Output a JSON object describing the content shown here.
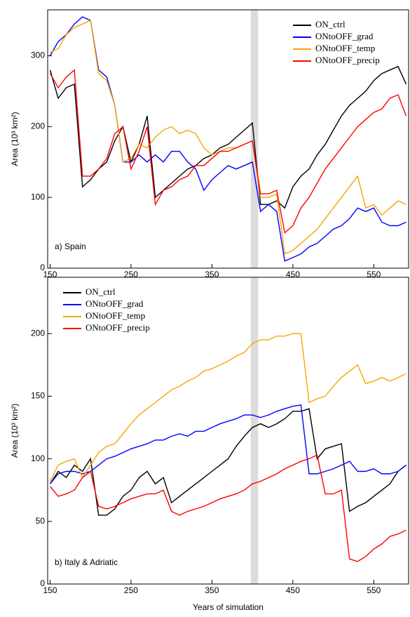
{
  "chart_data": [
    {
      "type": "line",
      "annotation": "a) Spain",
      "ylabel": "Area (10³ km²)",
      "x": [
        150,
        160,
        170,
        180,
        190,
        200,
        210,
        220,
        230,
        240,
        250,
        260,
        270,
        280,
        290,
        300,
        310,
        320,
        330,
        340,
        350,
        360,
        370,
        380,
        390,
        400,
        410,
        420,
        430,
        440,
        450,
        460,
        470,
        480,
        490,
        500,
        510,
        520,
        530,
        540,
        550,
        560,
        570,
        580,
        590
      ],
      "series": [
        {
          "name": "ON_ctrl",
          "color": "#000000",
          "values": [
            280,
            240,
            255,
            260,
            115,
            125,
            140,
            150,
            180,
            200,
            150,
            175,
            215,
            100,
            110,
            120,
            130,
            140,
            145,
            155,
            160,
            170,
            175,
            185,
            195,
            205,
            90,
            90,
            95,
            85,
            115,
            130,
            140,
            160,
            175,
            195,
            215,
            230,
            240,
            250,
            265,
            275,
            280,
            285,
            260
          ]
        },
        {
          "name": "ONtoOFF_grad",
          "color": "#0000ff",
          "values": [
            300,
            320,
            330,
            345,
            355,
            350,
            280,
            270,
            230,
            150,
            150,
            160,
            150,
            160,
            150,
            165,
            165,
            150,
            140,
            110,
            125,
            135,
            145,
            140,
            145,
            150,
            80,
            90,
            80,
            10,
            15,
            20,
            30,
            35,
            45,
            55,
            60,
            70,
            85,
            80,
            85,
            65,
            60,
            60,
            65
          ]
        },
        {
          "name": "ONtoOFF_temp",
          "color": "#f5a700",
          "values": [
            305,
            310,
            330,
            340,
            345,
            350,
            275,
            265,
            230,
            150,
            155,
            175,
            170,
            185,
            195,
            200,
            190,
            195,
            190,
            170,
            160,
            165,
            170,
            170,
            175,
            180,
            100,
            100,
            105,
            20,
            25,
            35,
            45,
            55,
            70,
            85,
            100,
            115,
            130,
            85,
            90,
            75,
            85,
            95,
            90
          ]
        },
        {
          "name": "ONtoOFF_precip",
          "color": "#ff0000",
          "values": [
            275,
            255,
            270,
            280,
            130,
            130,
            140,
            155,
            190,
            200,
            140,
            165,
            200,
            90,
            110,
            115,
            125,
            130,
            145,
            145,
            155,
            165,
            165,
            170,
            175,
            180,
            105,
            105,
            110,
            50,
            60,
            85,
            100,
            120,
            140,
            155,
            170,
            185,
            200,
            210,
            220,
            225,
            240,
            245,
            215
          ]
        }
      ],
      "xlim": [
        147,
        593
      ],
      "xticks": [
        150,
        250,
        350,
        450,
        550
      ],
      "ylim": [
        0,
        365
      ],
      "yticks": [
        0,
        100,
        200,
        300
      ],
      "shade": [
        398,
        407
      ],
      "legend": "upper right"
    },
    {
      "type": "line",
      "annotation": "b) Italy & Adriatic",
      "ylabel": "Area (10³ km²)",
      "xlabel": "Years of simulation",
      "x": [
        150,
        160,
        170,
        180,
        190,
        200,
        210,
        220,
        230,
        240,
        250,
        260,
        270,
        280,
        290,
        300,
        310,
        320,
        330,
        340,
        350,
        360,
        370,
        380,
        390,
        400,
        410,
        420,
        430,
        440,
        450,
        460,
        470,
        480,
        490,
        500,
        510,
        520,
        530,
        540,
        550,
        560,
        570,
        580,
        590
      ],
      "series": [
        {
          "name": "ON_ctrl",
          "color": "#000000",
          "values": [
            80,
            90,
            85,
            95,
            90,
            100,
            55,
            55,
            60,
            70,
            75,
            85,
            90,
            80,
            85,
            65,
            70,
            75,
            80,
            85,
            90,
            95,
            100,
            110,
            118,
            125,
            128,
            125,
            128,
            132,
            138,
            138,
            140,
            100,
            108,
            110,
            112,
            58,
            62,
            65,
            70,
            75,
            80,
            90,
            95
          ]
        },
        {
          "name": "ONtoOFF_grad",
          "color": "#0000ff",
          "values": [
            80,
            88,
            90,
            90,
            88,
            90,
            95,
            100,
            102,
            105,
            108,
            110,
            112,
            115,
            115,
            118,
            120,
            118,
            122,
            122,
            125,
            128,
            130,
            132,
            135,
            135,
            133,
            135,
            138,
            140,
            142,
            143,
            88,
            88,
            90,
            92,
            95,
            98,
            90,
            90,
            92,
            88,
            88,
            90,
            95
          ]
        },
        {
          "name": "ONtoOFF_temp",
          "color": "#f5a700",
          "values": [
            82,
            95,
            98,
            100,
            85,
            95,
            105,
            110,
            112,
            120,
            128,
            135,
            140,
            145,
            150,
            155,
            158,
            162,
            165,
            170,
            172,
            175,
            178,
            182,
            185,
            192,
            195,
            195,
            198,
            198,
            200,
            200,
            145,
            148,
            150,
            158,
            165,
            170,
            175,
            160,
            162,
            165,
            162,
            165,
            168
          ]
        },
        {
          "name": "ONtoOFF_precip",
          "color": "#ff0000",
          "values": [
            78,
            70,
            72,
            75,
            85,
            90,
            62,
            60,
            62,
            65,
            68,
            70,
            72,
            72,
            75,
            58,
            55,
            58,
            60,
            62,
            65,
            68,
            70,
            72,
            75,
            80,
            82,
            85,
            88,
            92,
            95,
            98,
            100,
            103,
            72,
            72,
            75,
            20,
            18,
            22,
            28,
            32,
            38,
            40,
            43
          ]
        }
      ],
      "xlim": [
        147,
        593
      ],
      "xticks": [
        150,
        250,
        350,
        450,
        550
      ],
      "ylim": [
        0,
        245
      ],
      "yticks": [
        0,
        50,
        100,
        150,
        200
      ],
      "shade": [
        398,
        407
      ],
      "legend": "upper left"
    }
  ]
}
